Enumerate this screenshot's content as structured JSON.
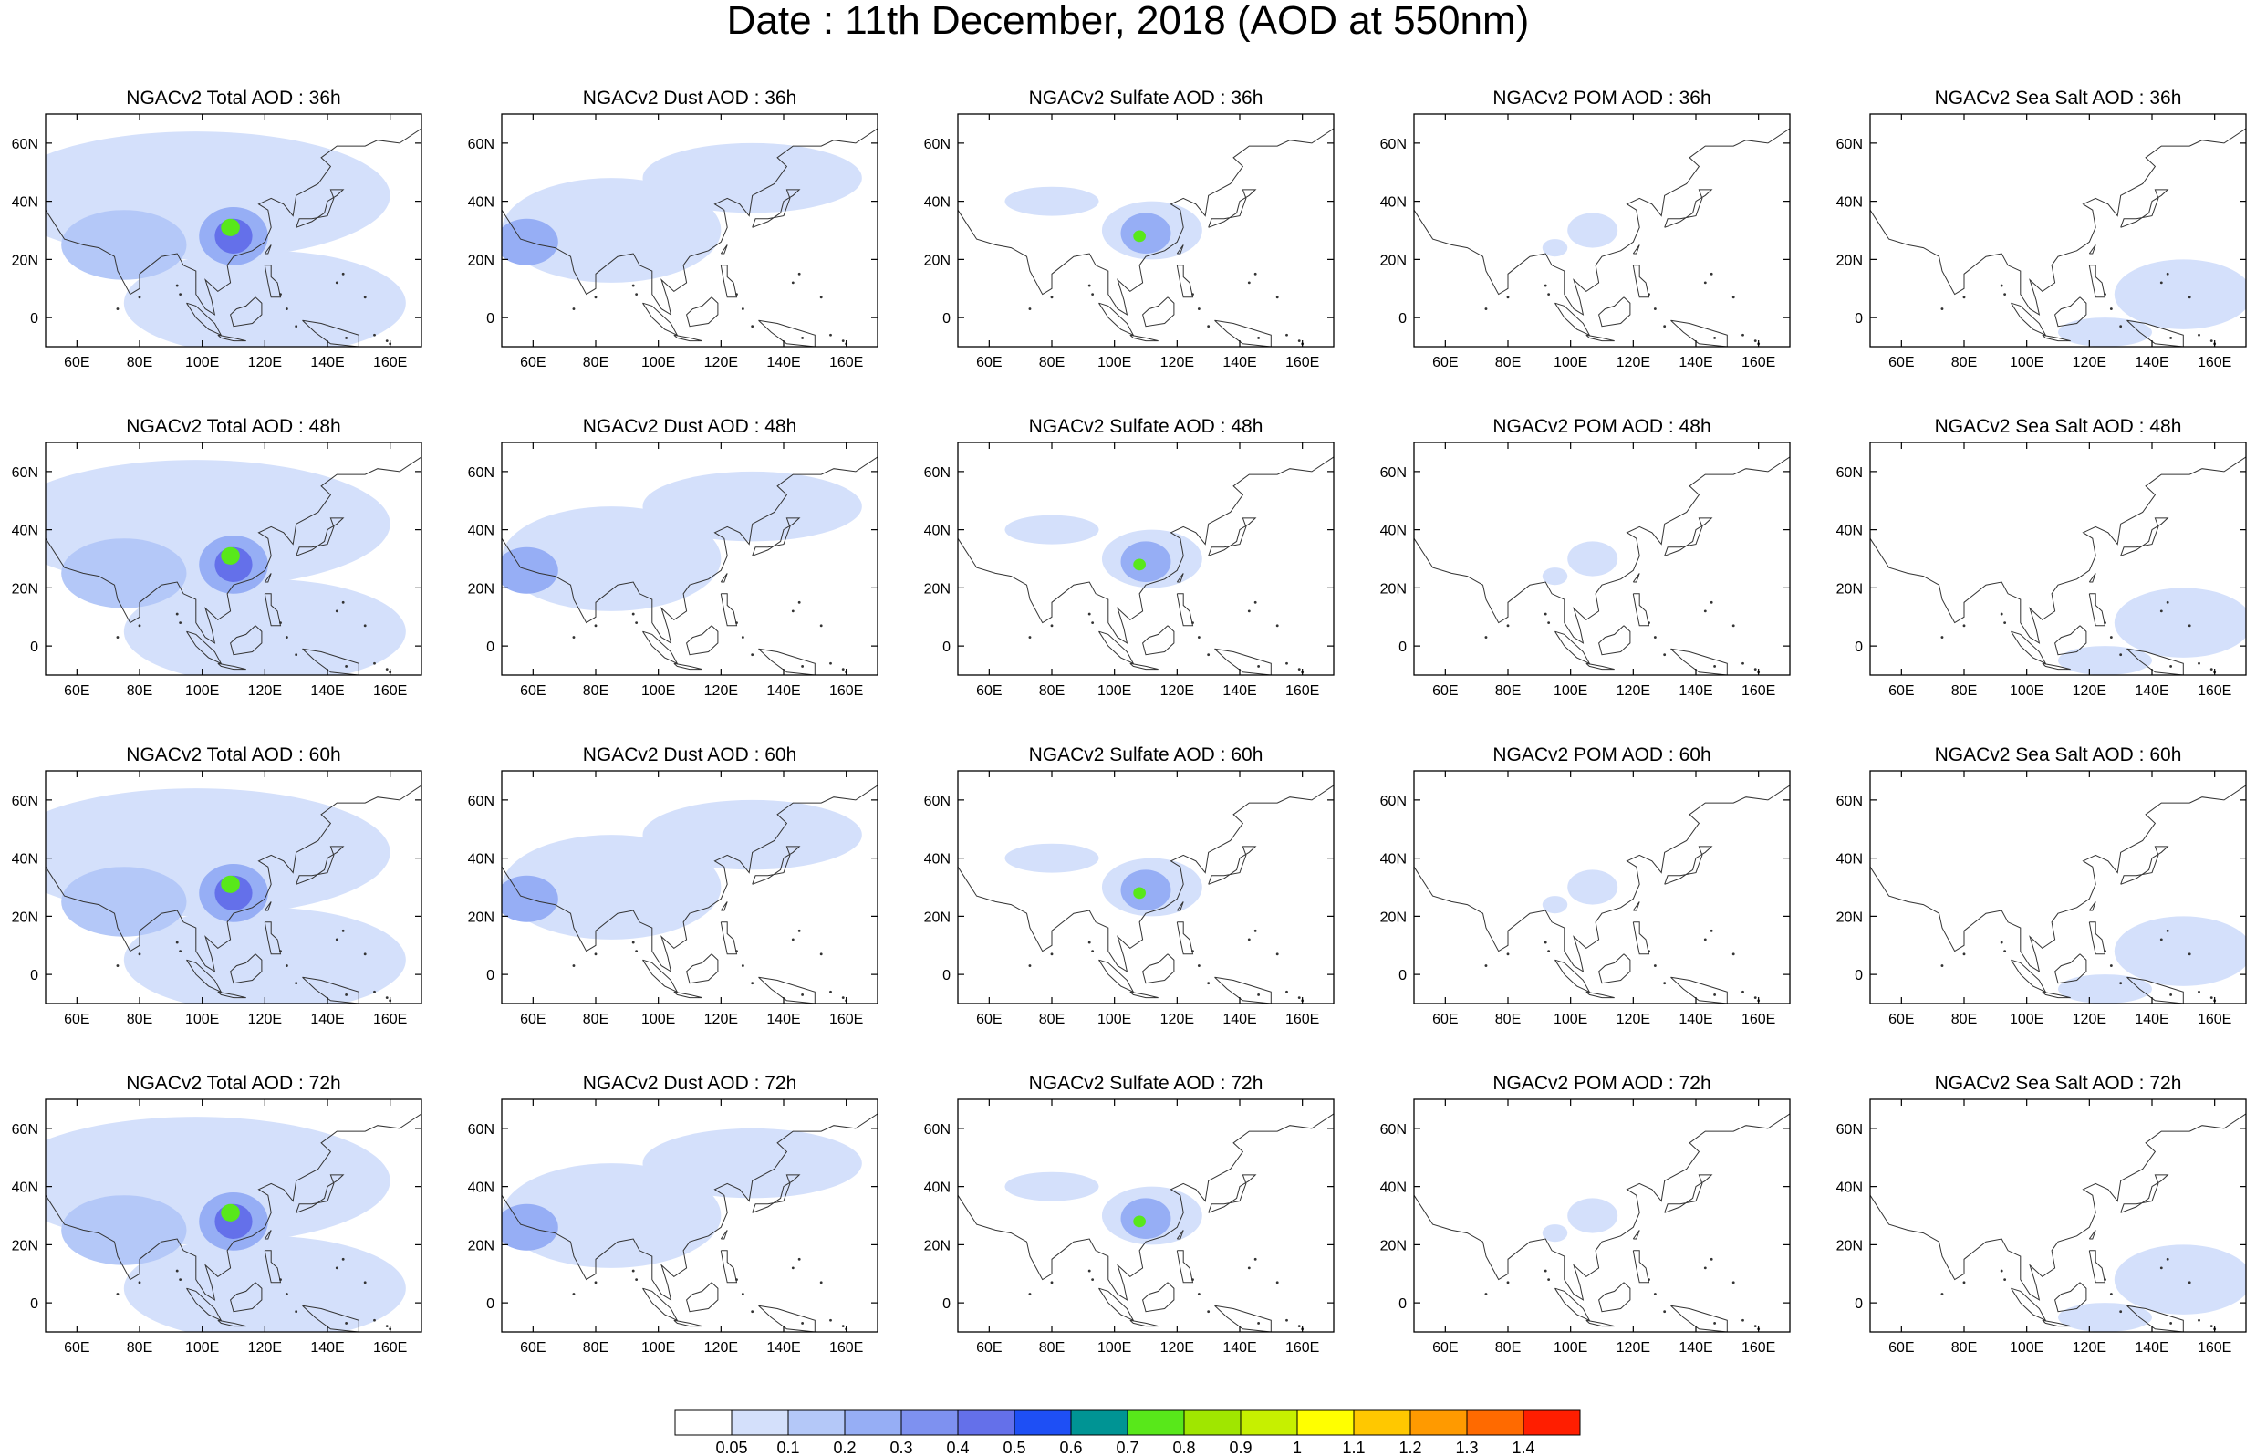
{
  "title": "Date : 11th December, 2018 (AOD at 550nm)",
  "panel_titles": [
    [
      "NGACv2 Total AOD : 36h",
      "NGACv2 Dust AOD : 36h",
      "NGACv2 Sulfate AOD : 36h",
      "NGACv2 POM AOD : 36h",
      "NGACv2 Sea Salt AOD : 36h"
    ],
    [
      "NGACv2 Total AOD : 48h",
      "NGACv2 Dust AOD : 48h",
      "NGACv2 Sulfate AOD : 48h",
      "NGACv2 POM AOD : 48h",
      "NGACv2 Sea Salt AOD : 48h"
    ],
    [
      "NGACv2 Total AOD : 60h",
      "NGACv2 Dust AOD : 60h",
      "NGACv2 Sulfate AOD : 60h",
      "NGACv2 POM AOD : 60h",
      "NGACv2 Sea Salt AOD : 60h"
    ],
    [
      "NGACv2 Total AOD : 72h",
      "NGACv2 Dust AOD : 72h",
      "NGACv2 Sulfate AOD : 72h",
      "NGACv2 POM AOD : 72h",
      "NGACv2 Sea Salt  AOD : 72h"
    ]
  ],
  "x_ticks": [
    "60E",
    "80E",
    "100E",
    "120E",
    "140E",
    "160E"
  ],
  "y_ticks": [
    "60N",
    "40N",
    "20N",
    "0"
  ],
  "map_extent": {
    "lon": [
      50,
      170
    ],
    "lat": [
      -10,
      70
    ]
  },
  "tick_lons": [
    60,
    80,
    100,
    120,
    140,
    160
  ],
  "tick_lats": [
    60,
    40,
    20,
    0
  ],
  "colorbar": {
    "labels": [
      "0.05",
      "0.1",
      "0.2",
      "0.3",
      "0.4",
      "0.5",
      "0.6",
      "0.7",
      "0.8",
      "0.9",
      "1",
      "1.1",
      "1.2",
      "1.3",
      "1.4"
    ],
    "colors": [
      "#ffffff",
      "#d4e0fb",
      "#b4c8f8",
      "#96aef5",
      "#7e91f0",
      "#6470ea",
      "#1e4ff5",
      "#009494",
      "#58e81a",
      "#a0e600",
      "#c6f000",
      "#ffff00",
      "#ffc800",
      "#ff9a00",
      "#ff6a00",
      "#ff1e00"
    ]
  },
  "fields": {
    "total": [
      {
        "lon": 98,
        "lat": 42,
        "rx": 62,
        "ry": 22,
        "c": 1
      },
      {
        "lon": 120,
        "lat": 5,
        "rx": 45,
        "ry": 18,
        "c": 1
      },
      {
        "lon": 75,
        "lat": 25,
        "rx": 20,
        "ry": 12,
        "c": 2
      },
      {
        "lon": 110,
        "lat": 28,
        "rx": 11,
        "ry": 10,
        "c": 3
      },
      {
        "lon": 110,
        "lat": 28,
        "rx": 6,
        "ry": 6,
        "c": 5
      },
      {
        "lon": 109,
        "lat": 31,
        "rx": 3,
        "ry": 3,
        "c": 8
      }
    ],
    "dust": [
      {
        "lon": 85,
        "lat": 30,
        "rx": 35,
        "ry": 18,
        "c": 1
      },
      {
        "lon": 58,
        "lat": 26,
        "rx": 10,
        "ry": 8,
        "c": 3
      },
      {
        "lon": 130,
        "lat": 48,
        "rx": 35,
        "ry": 12,
        "c": 1
      }
    ],
    "sulfate": [
      {
        "lon": 112,
        "lat": 30,
        "rx": 16,
        "ry": 10,
        "c": 1
      },
      {
        "lon": 110,
        "lat": 29,
        "rx": 8,
        "ry": 7,
        "c": 3
      },
      {
        "lon": 108,
        "lat": 28,
        "rx": 2,
        "ry": 2,
        "c": 8
      },
      {
        "lon": 80,
        "lat": 40,
        "rx": 15,
        "ry": 5,
        "c": 1
      }
    ],
    "pom": [
      {
        "lon": 107,
        "lat": 30,
        "rx": 8,
        "ry": 6,
        "c": 1
      },
      {
        "lon": 95,
        "lat": 24,
        "rx": 4,
        "ry": 3,
        "c": 1
      }
    ],
    "seasalt": [
      {
        "lon": 150,
        "lat": 8,
        "rx": 22,
        "ry": 12,
        "c": 1
      },
      {
        "lon": 125,
        "lat": -5,
        "rx": 15,
        "ry": 5,
        "c": 1
      }
    ]
  }
}
